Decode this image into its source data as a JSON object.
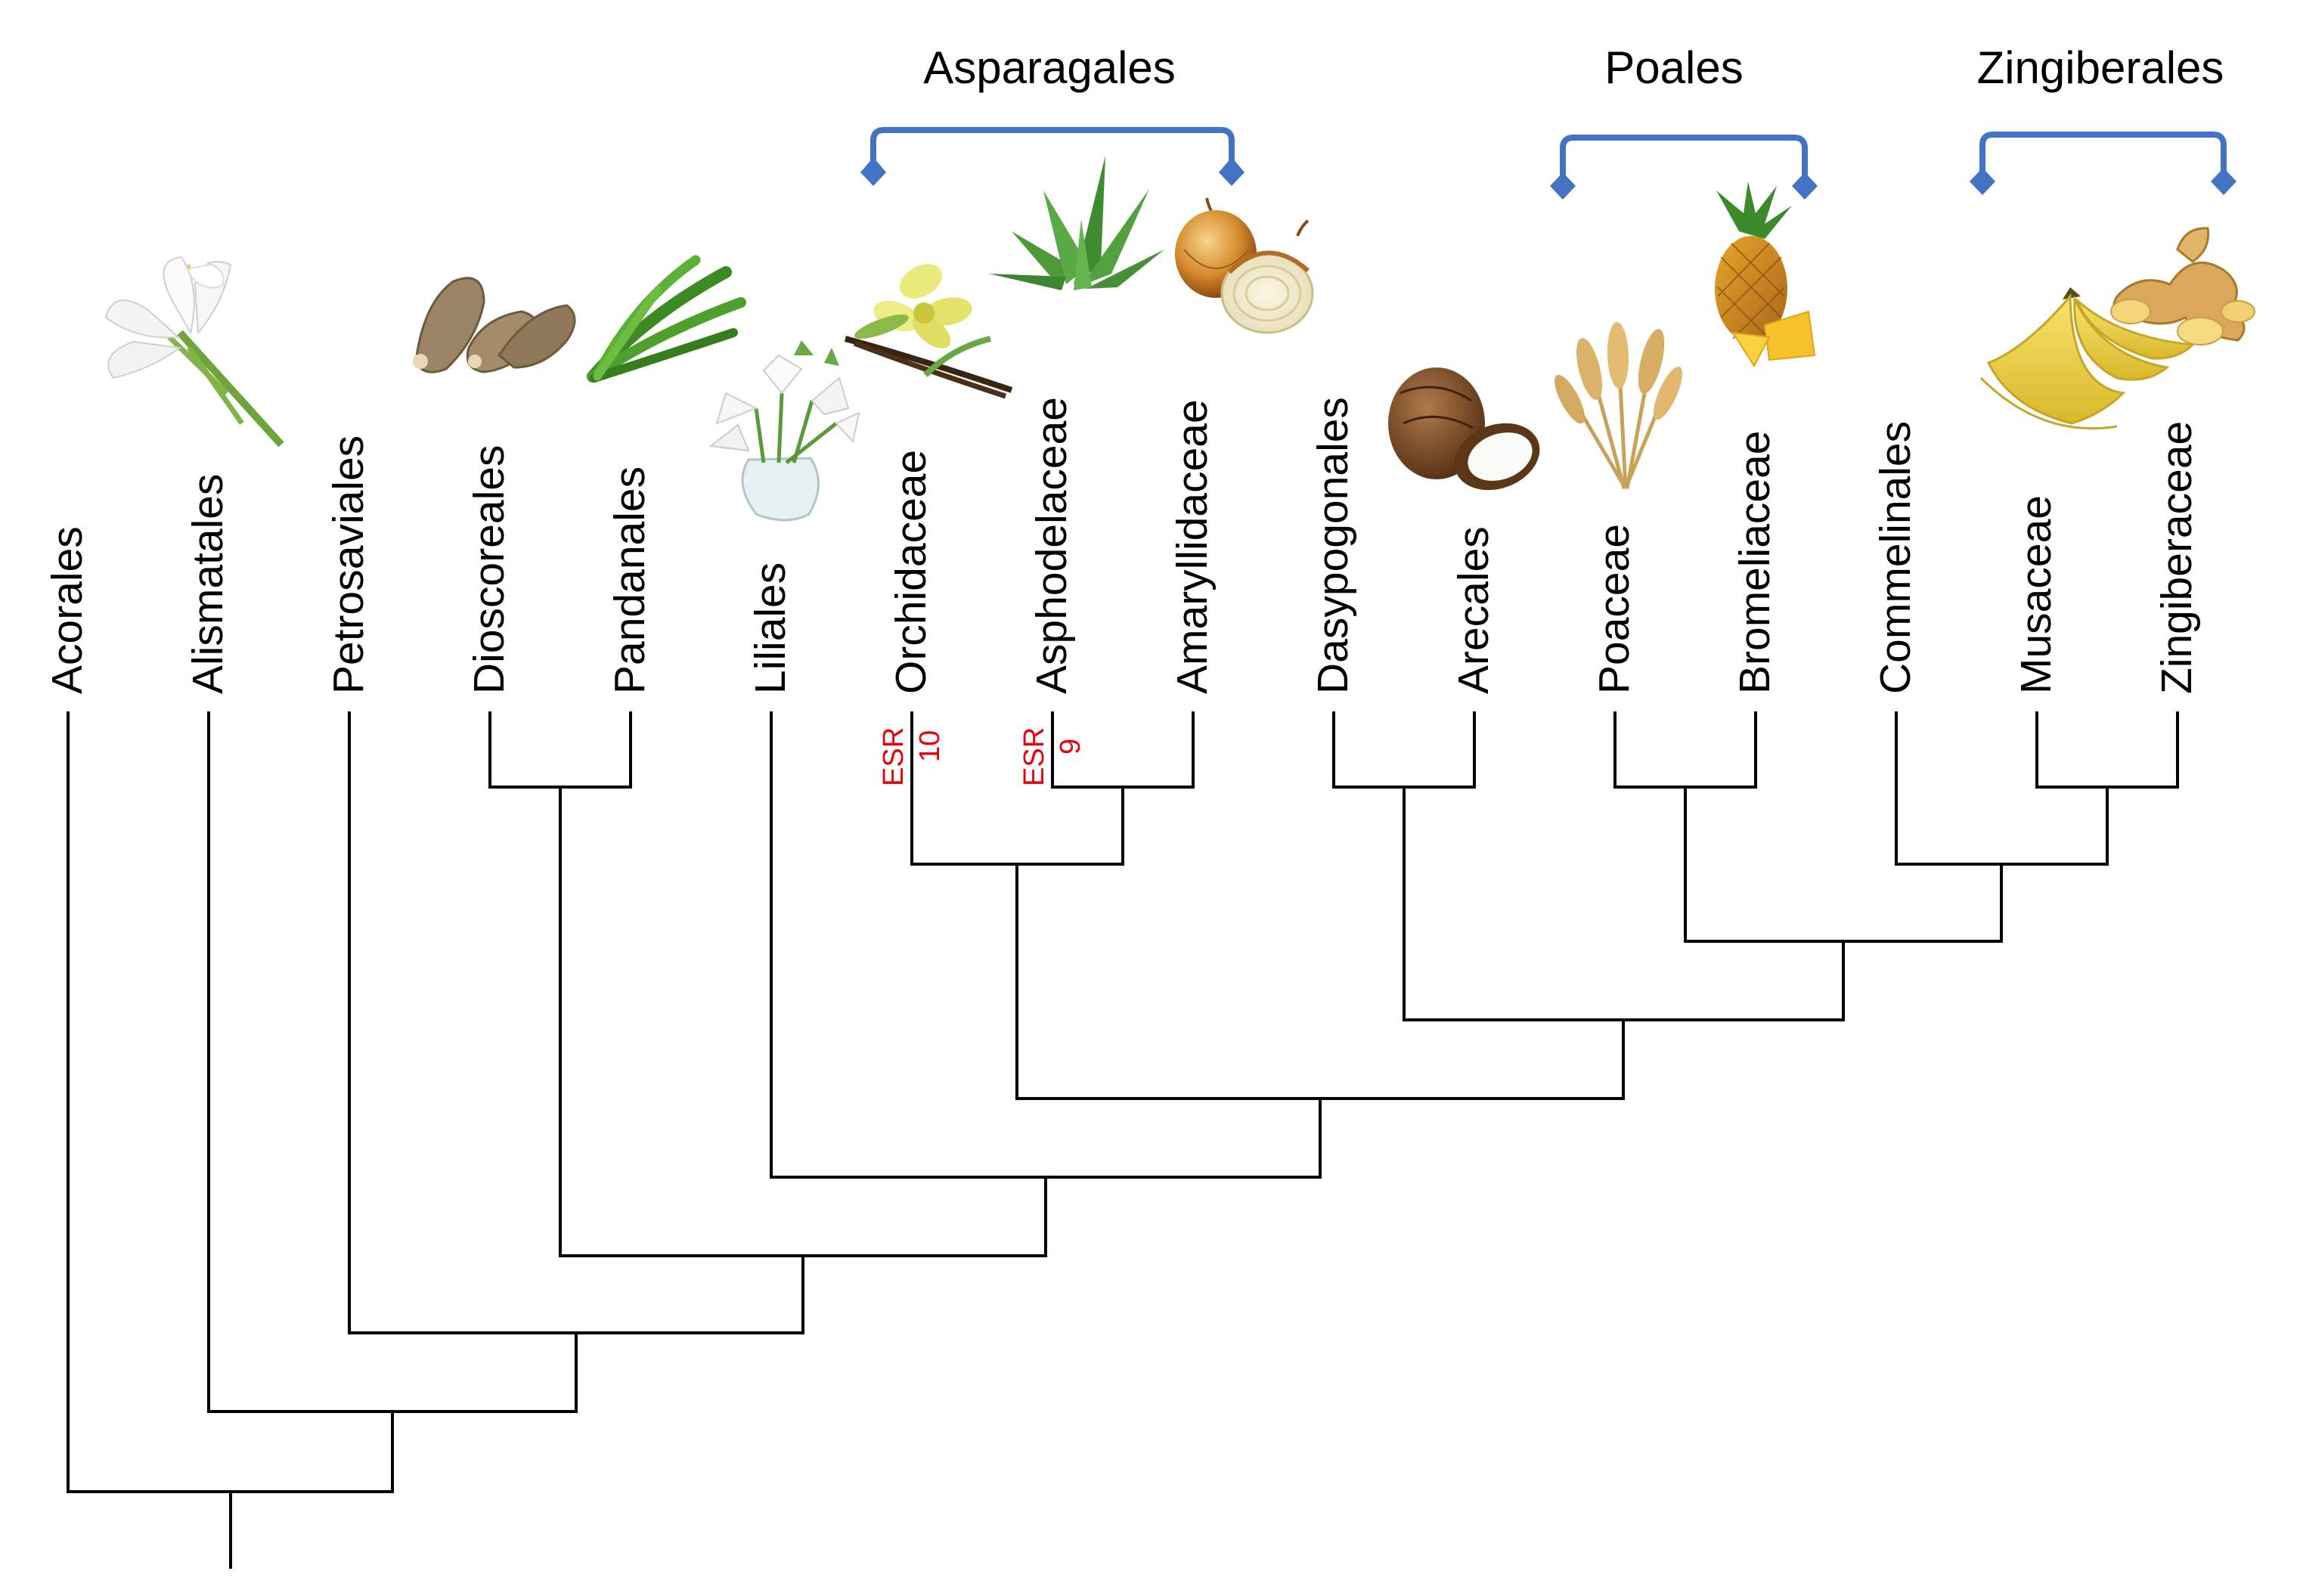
{
  "colors": {
    "tree_lines": "#000000",
    "group_brackets": "#4472c4",
    "annotations": "#e8000b",
    "background": "#ffffff"
  },
  "taxa": [
    {
      "label": "Acorales"
    },
    {
      "label": "Alismatales",
      "picture": "calla-lily-icon"
    },
    {
      "label": "Petrosaviales"
    },
    {
      "label": "Dioscoreales",
      "picture": "yam-icon"
    },
    {
      "label": "Pandanales",
      "picture": "pandan-leaves-icon"
    },
    {
      "label": "Liliales",
      "picture": "lily-vase-icon"
    },
    {
      "label": "Orchidaceae",
      "picture": "vanilla-orchid-icon"
    },
    {
      "label": "Asphodelaceae",
      "picture": "aloe-icon"
    },
    {
      "label": "Amaryllidaceae",
      "picture": "onion-icon"
    },
    {
      "label": "Dasypogonales"
    },
    {
      "label": "Arecales",
      "picture": "coconut-icon"
    },
    {
      "label": "Poaceae",
      "picture": "wheat-icon"
    },
    {
      "label": "Bromeliaceae",
      "picture": "pineapple-icon"
    },
    {
      "label": "Commelinales"
    },
    {
      "label": "Musaceae",
      "picture": "banana-icon"
    },
    {
      "label": "Zingiberaceae",
      "picture": "ginger-icon"
    }
  ],
  "groups": [
    {
      "label": "Asparagales"
    },
    {
      "label": "Poales"
    },
    {
      "label": "Zingiberales"
    }
  ],
  "annotations": [
    {
      "label": "ESR",
      "number": "10"
    },
    {
      "label": "ESR",
      "number": "9"
    }
  ]
}
